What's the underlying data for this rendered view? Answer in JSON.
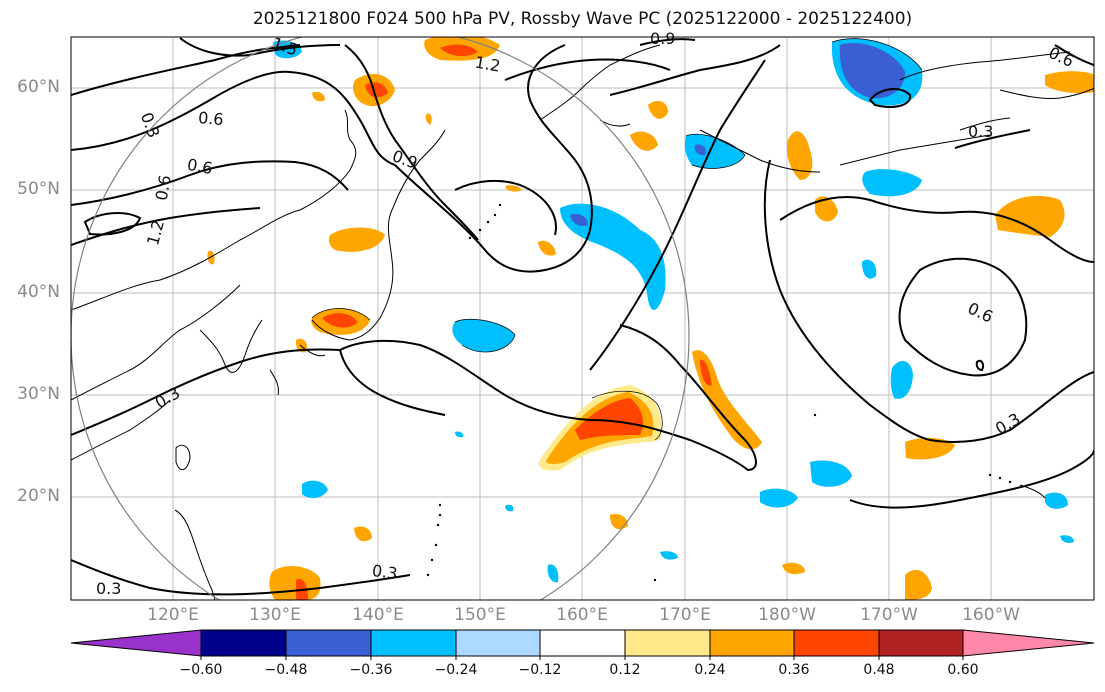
{
  "title": "2025121800 F024 500 hPa PV, Rossby Wave PC (2025122000 - 2025122400)",
  "latitude_labels": [
    "60°N",
    "50°N",
    "40°N",
    "30°N",
    "20°N"
  ],
  "longitude_labels": [
    "120°E",
    "130°E",
    "140°E",
    "150°E",
    "160°E",
    "170°E",
    "180°W",
    "170°W",
    "160°W"
  ],
  "contour_labels": [
    "1.5",
    "1.2",
    "0.9",
    "0.6",
    "0.6",
    "0.3",
    "0.6",
    "0.9",
    "1.2",
    "0.6",
    "0.3",
    "0.6",
    "0.3",
    "0.3",
    "0.3",
    "0.3"
  ],
  "colorbar": {
    "ticks": [
      "−0.60",
      "−0.48",
      "−0.36",
      "−0.24",
      "−0.12",
      "0.12",
      "0.24",
      "0.36",
      "0.48",
      "0.60"
    ],
    "colors": [
      "#9932cc",
      "#00008b",
      "#3a5fd4",
      "#00bfff",
      "#add8ff",
      "#ffffff",
      "#ffe98a",
      "#ffa500",
      "#ff4500",
      "#b22222",
      "#ff88aa"
    ]
  },
  "colors": {
    "pos_low": "#ffe98a",
    "pos_mid": "#ffa500",
    "pos_high": "#ff4500",
    "neg_low": "#add8ff",
    "neg_mid": "#00bfff",
    "neg_high": "#3a5fd4"
  }
}
